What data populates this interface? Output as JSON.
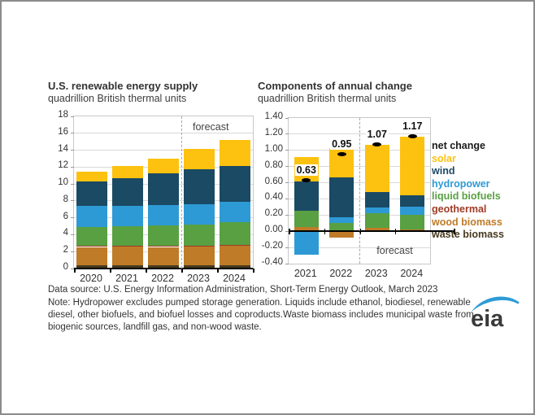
{
  "chart_data": [
    {
      "type": "bar",
      "stacked": true,
      "title": "U.S. renewable energy supply",
      "subtitle": "quadrillion British thermal units",
      "categories": [
        "2020",
        "2021",
        "2022",
        "2023",
        "2024"
      ],
      "series": [
        {
          "name": "waste biomass",
          "color": "#473a20",
          "values": [
            0.35,
            0.35,
            0.35,
            0.35,
            0.35
          ]
        },
        {
          "name": "wood biomass",
          "color": "#bf7b28",
          "values": [
            2.2,
            2.25,
            2.2,
            2.25,
            2.3
          ]
        },
        {
          "name": "geothermal",
          "color": "#a03b25",
          "values": [
            0.12,
            0.12,
            0.12,
            0.12,
            0.12
          ]
        },
        {
          "name": "liquid biofuels",
          "color": "#58a042",
          "values": [
            2.2,
            2.25,
            2.4,
            2.5,
            2.7
          ]
        },
        {
          "name": "hydropower",
          "color": "#2e9ad5",
          "values": [
            2.55,
            2.4,
            2.4,
            2.4,
            2.45
          ]
        },
        {
          "name": "wind",
          "color": "#1b4a64",
          "values": [
            2.9,
            3.3,
            3.8,
            4.1,
            4.2
          ]
        },
        {
          "name": "solar",
          "color": "#fdc110",
          "values": [
            1.15,
            1.45,
            1.75,
            2.4,
            3.1
          ]
        }
      ],
      "ylim": [
        0,
        18
      ],
      "ytick_step": 2,
      "ytick_decimals": 0,
      "grid": true,
      "legend_position": "none",
      "forecast": {
        "label": "forecast",
        "divider_after": "2022",
        "label_position": "top"
      }
    },
    {
      "type": "bar",
      "stacked": true,
      "title": "Components of annual change",
      "subtitle": "quadrillion British thermal units",
      "categories": [
        "2021",
        "2022",
        "2023",
        "2024"
      ],
      "series": [
        {
          "name": "waste biomass",
          "color": "#473a20",
          "values": [
            0,
            0,
            0,
            0
          ]
        },
        {
          "name": "wood biomass",
          "color": "#bf7b28",
          "values": [
            0.05,
            -0.08,
            0.04,
            0.02
          ]
        },
        {
          "name": "geothermal",
          "color": "#a03b25",
          "values": [
            0,
            0,
            0,
            0
          ]
        },
        {
          "name": "liquid biofuels",
          "color": "#58a042",
          "values": [
            0.2,
            0.1,
            0.18,
            0.18
          ]
        },
        {
          "name": "hydropower",
          "color": "#2e9ad5",
          "values": [
            -0.29,
            0.07,
            0.07,
            0.1
          ]
        },
        {
          "name": "wind",
          "color": "#1b4a64",
          "values": [
            0.37,
            0.5,
            0.19,
            0.14
          ]
        },
        {
          "name": "solar",
          "color": "#fdc110",
          "values": [
            0.3,
            0.36,
            0.59,
            0.73
          ]
        }
      ],
      "net_change": {
        "name": "net change",
        "color": "#000000",
        "values": [
          0.63,
          0.95,
          1.07,
          1.17
        ],
        "labels": [
          "0.63",
          "0.95",
          "1.07",
          "1.17"
        ]
      },
      "ylim": [
        -0.4,
        1.4
      ],
      "ytick_step": 0.2,
      "ytick_decimals": 2,
      "grid": true,
      "legend_position": "right",
      "forecast": {
        "label": "forecast",
        "divider_after": "2022",
        "label_position": "bottom"
      }
    }
  ],
  "legend": {
    "items": [
      {
        "label": "net change",
        "color": "#1a1a1a"
      },
      {
        "label": "solar",
        "color": "#fdc110"
      },
      {
        "label": "wind",
        "color": "#1b4a64"
      },
      {
        "label": "hydropower",
        "color": "#2e9ad5"
      },
      {
        "label": "liquid biofuels",
        "color": "#58a042"
      },
      {
        "label": "geothermal",
        "color": "#a03b25"
      },
      {
        "label": "wood biomass",
        "color": "#bf7b28"
      },
      {
        "label": "waste biomass",
        "color": "#473a20"
      }
    ]
  },
  "footer": {
    "data_source": "Data source: U.S. Energy Information Administration, Short-Term Energy Outlook, March 2023",
    "note": "Note: Hydropower excludes pumped storage generation. Liquids include ethanol, biodiesel, renewable diesel, other biofuels, and biofuel losses and coproducts.Waste biomass includes municipal waste from biogenic sources, landfill gas, and non-wood waste."
  },
  "logo": {
    "text": "eia",
    "swoosh_color": "#2d9bd7",
    "text_color": "#3a3a3a"
  }
}
